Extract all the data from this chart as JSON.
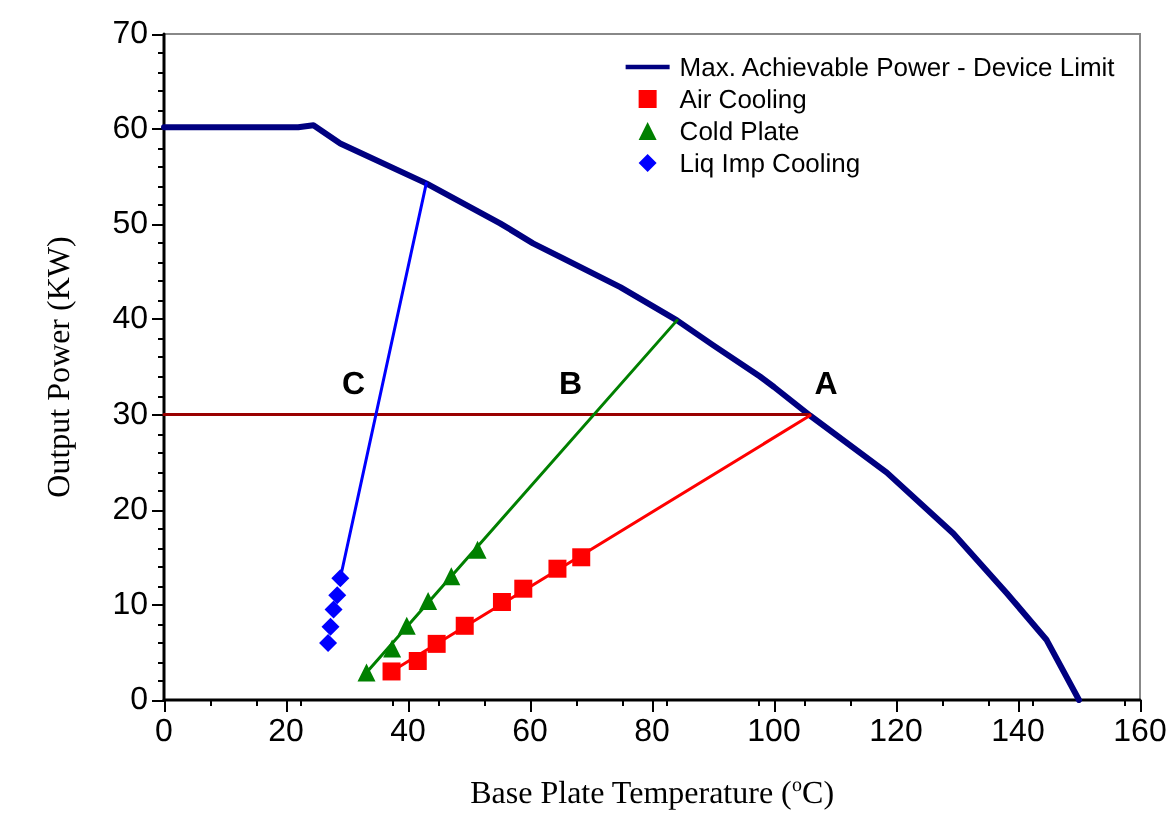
{
  "chart_data": {
    "type": "line",
    "xlabel": "Base Plate Temperature ($^{o}$C)",
    "ylabel": "Output Power (KW)",
    "xlim": [
      0,
      160
    ],
    "xticks": [
      0,
      20,
      40,
      60,
      80,
      100,
      120,
      140,
      160
    ],
    "ylim": [
      0,
      70
    ],
    "yticks": [
      0,
      10,
      20,
      30,
      40,
      50,
      60,
      70
    ],
    "grid": false,
    "legend": "top right",
    "series": [
      {
        "name": "Max. Achievable Power - Device Limit",
        "color": "#000080",
        "marker": "none",
        "x": [
          0,
          22,
          24.5,
          28.9,
          43,
          55.1,
          60.5,
          74.8,
          84.1,
          90,
          97.7,
          100,
          105.9,
          118.5,
          129.4,
          138.2,
          144.7,
          150
        ],
        "values": [
          60.2,
          60.2,
          60.4,
          58.5,
          54.3,
          50.1,
          48,
          43.4,
          39.9,
          37.3,
          34,
          32.9,
          29.9,
          23.9,
          17.5,
          11.2,
          6.3,
          0
        ]
      },
      {
        "color": "#990000",
        "marker": "none",
        "x": [
          0,
          105.9
        ],
        "values": [
          30,
          30
        ]
      },
      {
        "color": "#ff0000",
        "marker": "none",
        "x": [
          37.3,
          105.9
        ],
        "values": [
          3,
          29.9
        ]
      },
      {
        "color": "#008000",
        "marker": "none",
        "x": [
          33.2,
          84.1
        ],
        "values": [
          2.9,
          39.9
        ]
      },
      {
        "color": "#0000ff",
        "marker": "none",
        "x": [
          28.9,
          43
        ],
        "values": [
          12.8,
          54.3
        ]
      },
      {
        "type": "scatter",
        "name": "Air Cooling",
        "color": "#ff0000",
        "marker": "square",
        "x": [
          37.3,
          41.6,
          44.7,
          49.3,
          55.4,
          58.9,
          64.5,
          68.4
        ],
        "values": [
          3,
          4.1,
          5.9,
          7.8,
          10.3,
          11.7,
          13.8,
          15
        ]
      },
      {
        "type": "scatter",
        "name": "Cold Plate",
        "color": "#008000",
        "marker": "triangle",
        "x": [
          33.2,
          37.4,
          39.8,
          43.3,
          47.1,
          51.4
        ],
        "values": [
          2.9,
          5.4,
          7.8,
          10.4,
          13,
          15.8
        ]
      },
      {
        "type": "scatter",
        "name": "Liq Imp Cooling",
        "color": "#0000ff",
        "marker": "diamond",
        "x": [
          26.9,
          27.3,
          27.8,
          28.4,
          28.9
        ],
        "values": [
          6,
          7.7,
          9.5,
          11,
          12.8
        ]
      }
    ],
    "annotations": [
      {
        "text": "C",
        "x": 35,
        "y": 30
      },
      {
        "text": "B",
        "x": 70.6,
        "y": 30
      },
      {
        "text": "A",
        "x": 105.9,
        "y": 30
      }
    ]
  }
}
